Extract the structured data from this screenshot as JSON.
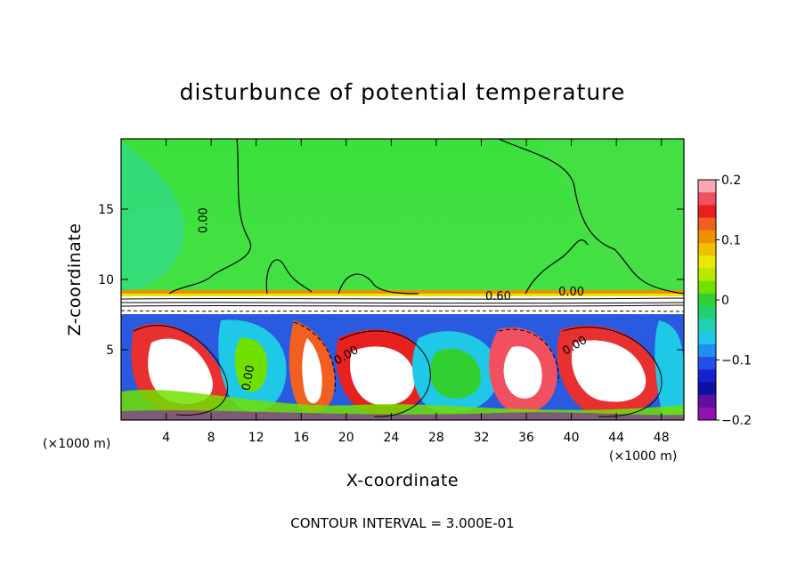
{
  "chart_data": {
    "type": "heatmap",
    "title": "disturbunce of potential temperature",
    "xlabel": "X-coordinate",
    "ylabel": "Z-coordinate",
    "x_unit": "(×1000 m)",
    "x_unit_right": "(×1000 m)",
    "xlim": [
      0,
      50
    ],
    "ylim": [
      0,
      20
    ],
    "x_ticks": [
      4,
      8,
      12,
      16,
      20,
      24,
      28,
      32,
      36,
      40,
      44,
      48
    ],
    "y_ticks": [
      5,
      10,
      15
    ],
    "colorbar": {
      "range": [
        -0.2,
        0.2
      ],
      "ticks": [
        {
          "value": 0.2,
          "label": "0.2"
        },
        {
          "value": 0.1,
          "label": "0.1"
        },
        {
          "value": 0,
          "label": "0"
        },
        {
          "value": -0.1,
          "label": "−0.1"
        },
        {
          "value": -0.2,
          "label": "−0.2"
        }
      ],
      "colors": [
        "#f8a8b0",
        "#f05060",
        "#e82020",
        "#f06020",
        "#f09000",
        "#f0c000",
        "#e8e800",
        "#b8e800",
        "#70e000",
        "#30d030",
        "#20d070",
        "#20d0b0",
        "#20c8e8",
        "#2090f0",
        "#2050e8",
        "#1a20d0",
        "#1010a0",
        "#6010a0",
        "#9010b0"
      ]
    },
    "contour_interval_text": "CONTOUR INTERVAL = 3.000E-01",
    "contour_labels": [
      {
        "text": "0.00",
        "x": 7.3,
        "z": 14.2,
        "rotate": -90
      },
      {
        "text": "0.60",
        "x": 33.5,
        "z": 8.8,
        "rotate": 0
      },
      {
        "text": "0.00",
        "x": 40.0,
        "z": 9.1,
        "rotate": 0
      },
      {
        "text": "0.00",
        "x": 20.0,
        "z": 4.6,
        "rotate": -30
      },
      {
        "text": "0.00",
        "x": 40.3,
        "z": 5.3,
        "rotate": -30
      },
      {
        "text": "0.00",
        "x": 11.3,
        "z": 3.0,
        "rotate": -80
      }
    ],
    "background_level": 0
  }
}
